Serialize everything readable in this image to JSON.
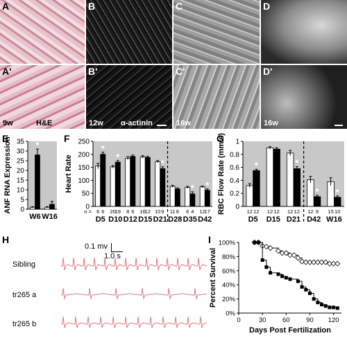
{
  "panels": {
    "A": {
      "letter": "A",
      "letter2": "A'",
      "age": "9w",
      "stain": "H&E"
    },
    "B": {
      "letter": "B",
      "letter2": "B'",
      "age": "12w",
      "stain": "α-actinin"
    },
    "C": {
      "letter": "C",
      "letter2": "C'",
      "age": "16w"
    },
    "D": {
      "letter": "D",
      "letter2": "D'",
      "age": "16w"
    },
    "E": {
      "letter": "E"
    },
    "F": {
      "letter": "F"
    },
    "G": {
      "letter": "G"
    },
    "H": {
      "letter": "H"
    },
    "I": {
      "letter": "I"
    }
  },
  "ecg": {
    "scale_mv": "0.1 mv",
    "scale_s": "1.0 s",
    "traces": [
      "Sibling",
      "tr265 a",
      "tr265 b"
    ]
  },
  "chart_data": [
    {
      "id": "E",
      "type": "bar",
      "ylabel": "ANF RNA Expression",
      "ylim": [
        0,
        35
      ],
      "yticks": [
        0,
        5,
        10,
        15,
        20,
        25,
        30,
        35
      ],
      "categories": [
        "W6",
        "W16"
      ],
      "series": [
        {
          "values": [
            1,
            1
          ],
          "err": [
            0.3,
            0.3
          ],
          "color": "#ffffff"
        },
        {
          "values": [
            28,
            2.5
          ],
          "err": [
            3,
            1.5
          ],
          "color": "#000000"
        }
      ],
      "significant": [
        true,
        false
      ]
    },
    {
      "id": "F",
      "type": "bar",
      "ylabel": "Heart Rate",
      "ylim": [
        0,
        250
      ],
      "yticks": [
        0,
        50,
        100,
        150,
        200,
        250
      ],
      "categories": [
        "D5",
        "D10",
        "D12",
        "D15",
        "D21",
        "D28",
        "D35",
        "D42"
      ],
      "n_prefix": "n =",
      "n_values": [
        [
          "6",
          "6"
        ],
        [
          "20",
          "19"
        ],
        [
          "8",
          "6"
        ],
        [
          "16",
          "12"
        ],
        [
          "10",
          "9"
        ],
        [
          "11",
          "8"
        ],
        [
          "6",
          "4"
        ],
        [
          "12",
          "17"
        ]
      ],
      "series": [
        {
          "values": [
            155,
            152,
            185,
            190,
            172,
            77,
            73,
            75
          ],
          "err": [
            10,
            5,
            6,
            5,
            4,
            4,
            4,
            3
          ],
          "color": "#ffffff"
        },
        {
          "values": [
            200,
            170,
            192,
            188,
            145,
            67,
            48,
            62
          ],
          "err": [
            8,
            6,
            5,
            4,
            7,
            4,
            8,
            5
          ],
          "color": "#000000"
        }
      ],
      "significant": [
        true,
        true,
        false,
        false,
        true,
        false,
        true,
        true
      ],
      "divider_after_index": 4
    },
    {
      "id": "G",
      "type": "bar",
      "ylabel": "RBC Flow Rate (mm/s)",
      "ylim": [
        0,
        1
      ],
      "yticks": [
        0,
        0.2,
        0.4,
        0.6,
        0.8,
        1
      ],
      "categories": [
        "D5",
        "D15",
        "D21",
        "D42",
        "W16"
      ],
      "n_values": [
        [
          "12",
          "12"
        ],
        [
          "12",
          "12"
        ],
        [
          "12",
          "12"
        ],
        [
          "12",
          "9"
        ],
        [
          "15",
          "10"
        ]
      ],
      "series": [
        {
          "values": [
            0.32,
            0.9,
            0.82,
            0.41,
            0.38
          ],
          "err": [
            0.03,
            0.02,
            0.04,
            0.05,
            0.06
          ],
          "color": "#ffffff"
        },
        {
          "values": [
            0.55,
            0.88,
            0.58,
            0.15,
            0.14
          ],
          "err": [
            0.02,
            0.02,
            0.03,
            0.02,
            0.02
          ],
          "color": "#000000"
        }
      ],
      "significant": [
        true,
        false,
        true,
        true,
        true
      ],
      "divider_after_index": 2
    },
    {
      "id": "I",
      "type": "line",
      "ylabel": "Percent Survival",
      "xlabel": "Days Post Fertilization",
      "xlim": [
        0,
        130
      ],
      "ylim": [
        0,
        100
      ],
      "xticks": [
        0,
        30,
        60,
        90,
        120
      ],
      "yticks": [
        "0%",
        "20%",
        "40%",
        "60%",
        "80%",
        "100%"
      ],
      "series": [
        {
          "marker": "diamond",
          "x": [
            20,
            25,
            30,
            35,
            40,
            50,
            55,
            60,
            65,
            70,
            75,
            80,
            85,
            90,
            95,
            100,
            105,
            110,
            115,
            120,
            125
          ],
          "y": [
            100,
            100,
            95,
            94,
            92,
            88,
            85,
            85,
            82,
            82,
            78,
            73,
            72,
            72,
            72,
            72,
            72,
            72,
            70,
            70,
            70
          ]
        },
        {
          "marker": "square",
          "x": [
            20,
            25,
            30,
            35,
            40,
            50,
            55,
            60,
            65,
            75,
            80,
            85,
            90,
            95,
            100,
            105,
            110,
            115,
            120,
            125
          ],
          "y": [
            100,
            100,
            75,
            65,
            57,
            55,
            52,
            50,
            48,
            45,
            37,
            33,
            28,
            20,
            15,
            12,
            10,
            8,
            8,
            7
          ]
        }
      ]
    }
  ]
}
